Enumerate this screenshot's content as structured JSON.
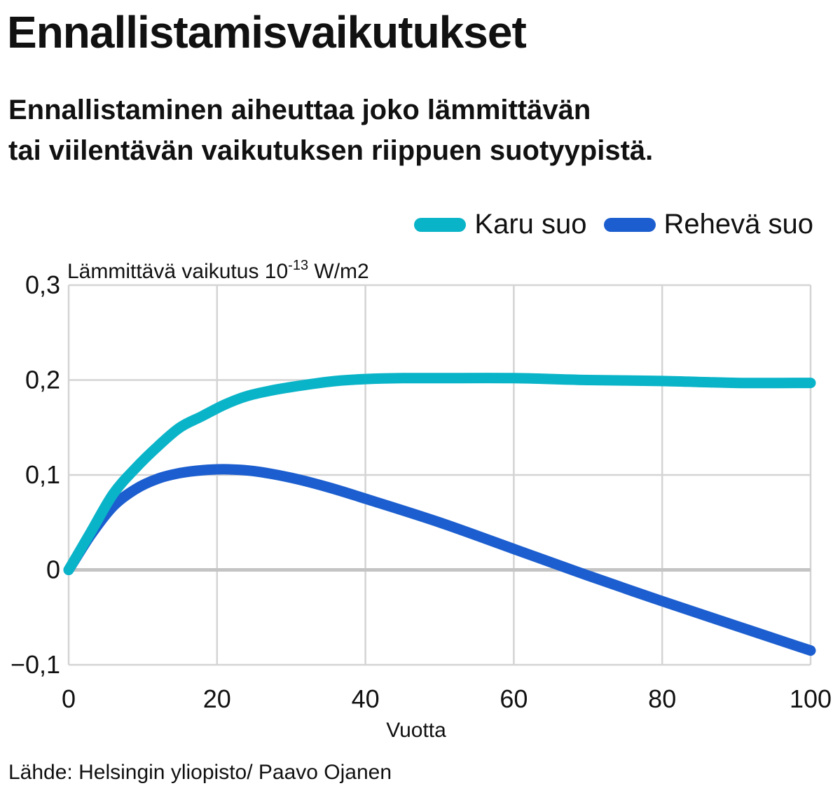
{
  "header": {
    "title": "Ennallistamisvaikutukset",
    "subtitle_line1": "Ennallistaminen aiheuttaa joko lämmittävän",
    "subtitle_line2": "tai viilentävän vaikutuksen riippuen suotyypistä."
  },
  "footer": {
    "source": "Lähde: Helsingin yliopisto/ Paavo Ojanen"
  },
  "chart_data": {
    "type": "line",
    "title": "Ennallistamisvaikutukset",
    "ylabel_prefix": "Lämmittävä vaikutus 10",
    "ylabel_exp": "-13",
    "ylabel_suffix": " W/m2",
    "xlabel": "Vuotta",
    "xlim": [
      0,
      100
    ],
    "ylim": [
      -0.1,
      0.3
    ],
    "x_ticks": [
      "0",
      "20",
      "40",
      "60",
      "80",
      "100"
    ],
    "y_ticks": [
      "0,3",
      "0,2",
      "0,1",
      "0",
      "−0,1"
    ],
    "grid": true,
    "legend_position": "top-right",
    "series": [
      {
        "name": "Karu suo",
        "color": "#0ab4c8",
        "x": [
          0,
          3,
          6,
          9,
          12,
          15,
          18,
          21,
          24,
          28,
          32,
          36,
          40,
          45,
          50,
          60,
          70,
          80,
          90,
          100
        ],
        "y": [
          0,
          0.04,
          0.08,
          0.107,
          0.13,
          0.15,
          0.162,
          0.174,
          0.183,
          0.19,
          0.195,
          0.199,
          0.201,
          0.202,
          0.202,
          0.202,
          0.2,
          0.199,
          0.197,
          0.197
        ]
      },
      {
        "name": "Rehevä suo",
        "color": "#1c5ecf",
        "x": [
          0,
          3,
          6,
          9,
          12,
          15,
          18,
          21,
          25,
          30,
          35,
          40,
          50,
          60,
          65,
          70,
          80,
          90,
          100
        ],
        "y": [
          0,
          0.037,
          0.067,
          0.085,
          0.096,
          0.102,
          0.105,
          0.106,
          0.104,
          0.097,
          0.087,
          0.075,
          0.05,
          0.022,
          0.008,
          -0.006,
          -0.033,
          -0.059,
          -0.085
        ]
      }
    ]
  }
}
